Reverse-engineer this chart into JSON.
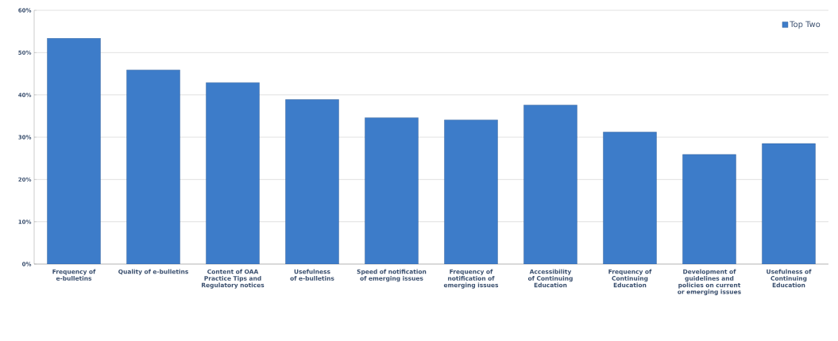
{
  "chart_data": {
    "type": "bar",
    "categories": [
      "Frequency of e-bulletins",
      "Quality of e-bulletins",
      "Content of OAA Practice Tips and Regulatory notices",
      "Usefulness of e-bulletins",
      "Speed of notification of emerging issues",
      "Frequency of notification of emerging issues",
      "Accessibility of Continuing Education",
      "Frequency of Continuing Education",
      "Development of guidelines and policies on current or emerging issues",
      "Usefulness of Continuing Education"
    ],
    "series": [
      {
        "name": "Top Two",
        "color": "#3d7cc9",
        "values": [
          53.4,
          45.9,
          42.9,
          38.9,
          34.6,
          34.1,
          37.6,
          31.2,
          25.9,
          28.5
        ]
      }
    ],
    "ylim": [
      0,
      60
    ],
    "yticks": [
      {
        "value": 0,
        "label": "0%"
      },
      {
        "value": 10,
        "label": "10%"
      },
      {
        "value": 20,
        "label": "20%"
      },
      {
        "value": 30,
        "label": "30%"
      },
      {
        "value": 40,
        "label": "40%"
      },
      {
        "value": 50,
        "label": "50%"
      },
      {
        "value": 60,
        "label": "60%"
      }
    ],
    "grid": "y",
    "legend": "top right"
  }
}
